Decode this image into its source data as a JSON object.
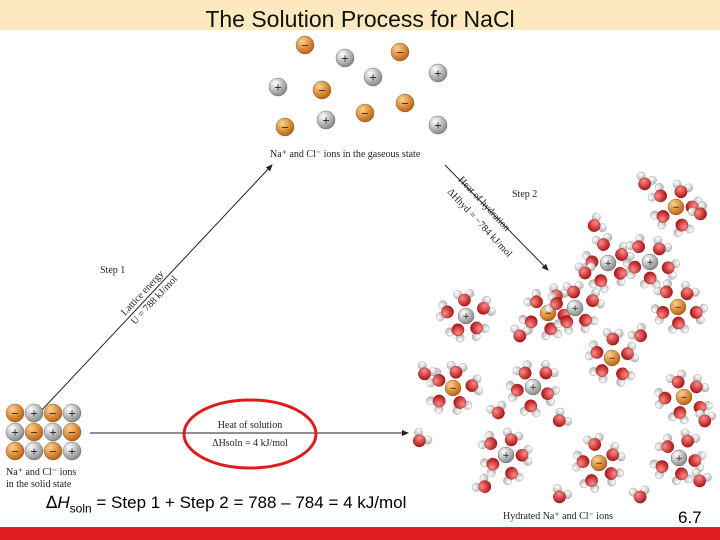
{
  "title": "The Solution Process for NaCl",
  "labels": {
    "gaseous": "Na⁺ and Cl⁻ ions in the gaseous state",
    "step1": "Step 1",
    "lattice_line1": "Lattice energy",
    "lattice_line2": "U = 788 kJ/mol",
    "step2": "Step 2",
    "hydration_line1": "Heat of hydration",
    "hydration_line2": "ΔHhyd = −784 kJ/mol",
    "solution_title": "Heat of solution",
    "solution_value": "ΔHsoln = 4 kJ/mol",
    "solid_line1": "Na⁺ and Cl⁻ ions",
    "solid_line2": "in the solid state",
    "hydrated": "Hydrated Na⁺ and Cl⁻ ions"
  },
  "equation": {
    "delta": "∆",
    "h": "H",
    "sub": "soln",
    "text": " = Step 1 + Step 2 = 788 – 784 = 4 kJ/mol"
  },
  "slide_number": "6.7",
  "ion_signs": {
    "cation": "+",
    "anion": "−"
  },
  "colors": {
    "title_band": "#fde9bf",
    "bottom_bar": "#e02020",
    "cation": "#999999",
    "anion": "#d97a1a",
    "water_oxygen": "#cc2a2a",
    "water_hydrogen": "#e8e8e8",
    "highlight_circle": "#e01b1b"
  }
}
